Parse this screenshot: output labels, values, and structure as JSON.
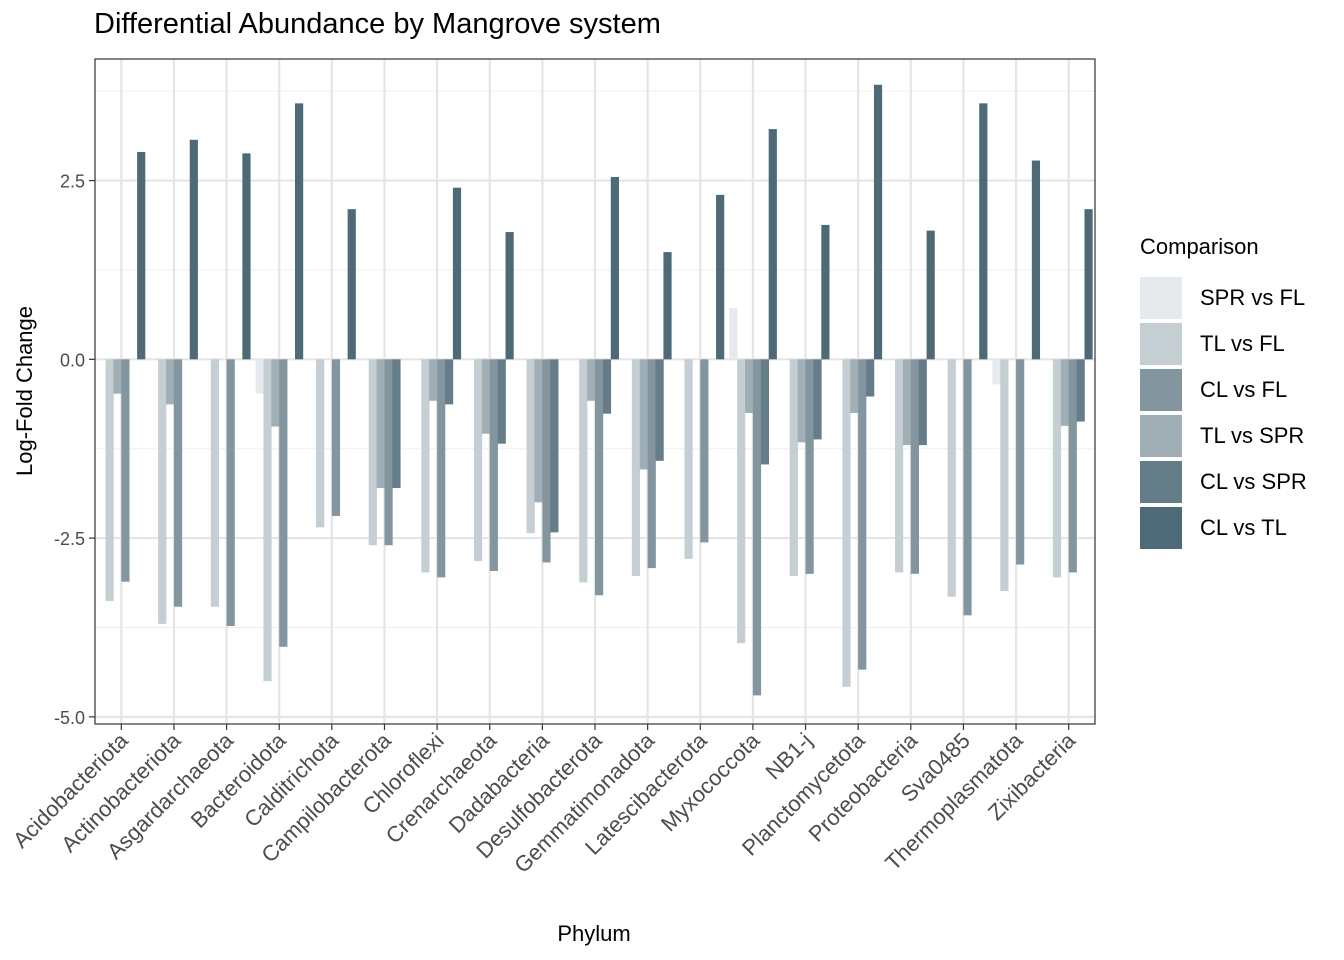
{
  "chart_data": {
    "type": "bar",
    "title": "Differential Abundance by Mangrove system",
    "xlabel": "Phylum",
    "ylabel": "Log-Fold Change",
    "ylim": [
      -5.1,
      4.2
    ],
    "yticks": [
      -5.0,
      -2.5,
      0.0,
      2.5
    ],
    "ytick_labels": [
      "-5.0",
      "-2.5",
      "0.0",
      "2.5"
    ],
    "grid": true,
    "legend_title": "Comparison",
    "legend_position": "right",
    "categories": [
      "Acidobacteriota",
      "Actinobacteriota",
      "Asgardarchaeota",
      "Bacteroidota",
      "Calditrichota",
      "Campilobacterota",
      "Chloroflexi",
      "Crenarchaeota",
      "Dadabacteria",
      "Desulfobacterota",
      "Gemmatimonadota",
      "Latescibacterota",
      "Myxococcota",
      "NB1-j",
      "Planctomycetota",
      "Proteobacteria",
      "Sva0485",
      "Thermoplasmatota",
      "Zixibacteria"
    ],
    "series": [
      {
        "name": "SPR vs FL",
        "color": "#E6EAED",
        "values": [
          null,
          null,
          null,
          -0.48,
          null,
          null,
          null,
          null,
          null,
          null,
          null,
          null,
          0.72,
          null,
          null,
          null,
          null,
          -0.35,
          null
        ]
      },
      {
        "name": "TL vs FL",
        "color": "#C5CED3",
        "values": [
          -3.38,
          -3.7,
          -3.46,
          -4.5,
          -2.35,
          -2.6,
          -2.98,
          -2.82,
          -2.43,
          -3.12,
          -3.03,
          -2.79,
          -3.97,
          -3.03,
          -4.58,
          -2.98,
          -3.32,
          -3.24,
          -3.05
        ]
      },
      {
        "name": "TL vs SPR",
        "color": "#A0AEB5",
        "values": [
          -0.48,
          -0.63,
          null,
          -0.94,
          null,
          -1.8,
          -0.58,
          -1.04,
          -2.0,
          -0.58,
          -1.54,
          null,
          -0.75,
          -1.16,
          -0.75,
          -1.2,
          null,
          null,
          -0.93
        ]
      },
      {
        "name": "CL vs FL",
        "color": "#8396A0",
        "values": [
          -3.11,
          -3.46,
          -3.73,
          -4.02,
          -2.19,
          -2.6,
          -3.05,
          -2.96,
          -2.84,
          -3.3,
          -2.92,
          -2.56,
          -4.7,
          -3.0,
          -4.34,
          -3.0,
          -3.58,
          -2.87,
          -2.98
        ]
      },
      {
        "name": "CL vs SPR",
        "color": "#657D89",
        "values": [
          null,
          null,
          null,
          null,
          null,
          -1.8,
          -0.63,
          -1.18,
          -2.42,
          -0.76,
          -1.42,
          null,
          -1.47,
          -1.12,
          -0.52,
          -1.2,
          null,
          null,
          -0.87
        ]
      },
      {
        "name": "CL vs TL",
        "color": "#4F6A77",
        "values": [
          2.9,
          3.07,
          2.88,
          3.58,
          2.1,
          null,
          2.4,
          1.78,
          null,
          2.55,
          1.5,
          2.3,
          3.22,
          1.88,
          3.84,
          1.8,
          3.58,
          2.78,
          2.1
        ]
      }
    ],
    "legend_order": [
      "SPR vs FL",
      "TL vs FL",
      "CL vs FL",
      "TL vs SPR",
      "CL vs SPR",
      "CL vs TL"
    ]
  }
}
